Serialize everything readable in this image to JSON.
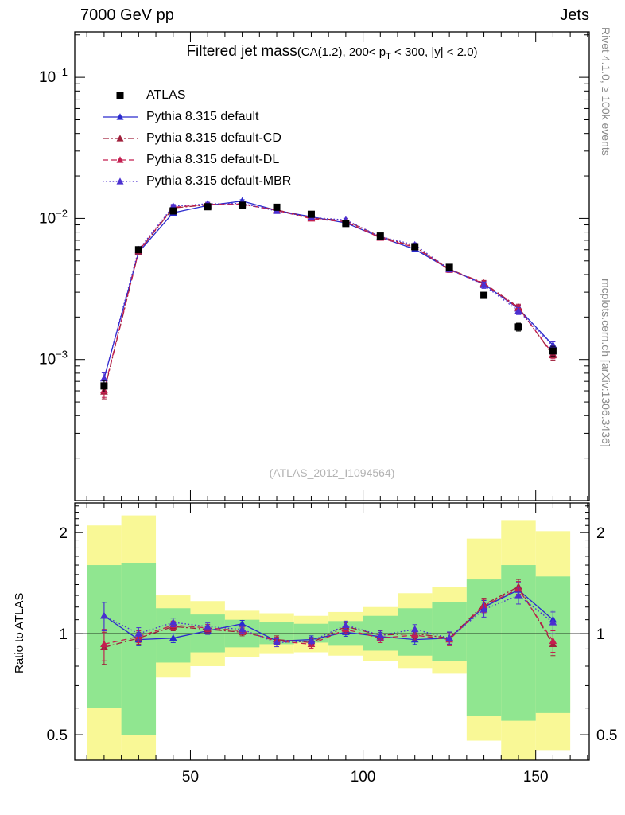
{
  "header": {
    "left": "7000 GeV pp",
    "right": "Jets"
  },
  "side": {
    "top": "Rivet 4.1.0, ≥ 100k events",
    "bottom": "mcplots.cern.ch [arXiv:1306.3436]"
  },
  "chart_data": {
    "type": "line",
    "title": "Filtered jet mass",
    "title_detail": {
      "pre": "(CA(1.2), 200< p",
      "sub": "T",
      "post": " < 300, |y| < 2.0)"
    },
    "watermark": "(ATLAS_2012_I1094564)",
    "xlim": [
      16.5,
      165.5
    ],
    "x": [
      25,
      35,
      45,
      55,
      65,
      75,
      85,
      95,
      105,
      115,
      125,
      135,
      145,
      155
    ],
    "bin_edges": [
      20,
      30,
      40,
      50,
      60,
      70,
      80,
      90,
      100,
      110,
      120,
      130,
      140,
      150,
      160
    ],
    "xticks": [
      {
        "v": 50,
        "label": "50"
      },
      {
        "v": 100,
        "label": "100"
      },
      {
        "v": 150,
        "label": "150"
      }
    ],
    "main": {
      "scale": "log",
      "ylim": [
        0.0001,
        0.21
      ],
      "ytick_base": "10",
      "yticks": [
        {
          "v": 0.001,
          "exp": "−3"
        },
        {
          "v": 0.01,
          "exp": "−2"
        },
        {
          "v": 0.1,
          "exp": "−1"
        }
      ],
      "atlas": {
        "name": "ATLAS",
        "color": "#000000",
        "marker": "square",
        "values": [
          0.00065,
          0.006,
          0.0113,
          0.0121,
          0.0124,
          0.012,
          0.0107,
          0.0092,
          0.0075,
          0.0063,
          0.0045,
          0.00285,
          0.0017,
          0.00115
        ],
        "yerr": [
          6e-05,
          0.00025,
          0.00035,
          0.00035,
          0.00035,
          0.00035,
          0.0003,
          0.00028,
          0.00025,
          0.00022,
          0.00018,
          0.00014,
          0.00011,
          9e-05
        ]
      }
    },
    "series": [
      {
        "name": "Pythia 8.315 default",
        "color": "#2a2ace",
        "line": "solid",
        "marker": "triangle",
        "ratio": [
          1.13,
          0.96,
          0.97,
          1.02,
          1.07,
          0.95,
          0.96,
          1.01,
          0.98,
          0.96,
          0.97,
          1.2,
          1.35,
          1.1
        ],
        "ratio_err": [
          0.11,
          0.04,
          0.03,
          0.025,
          0.025,
          0.025,
          0.025,
          0.028,
          0.03,
          0.032,
          0.04,
          0.055,
          0.07,
          0.075
        ]
      },
      {
        "name": "Pythia 8.315 default-CD",
        "color": "#a0203c",
        "line": "dashdot",
        "marker": "triangle",
        "ratio": [
          0.91,
          0.97,
          1.05,
          1.03,
          1.01,
          0.96,
          0.94,
          1.05,
          0.99,
          1.0,
          0.97,
          1.22,
          1.38,
          0.93
        ],
        "ratio_err": [
          0.1,
          0.04,
          0.03,
          0.025,
          0.025,
          0.025,
          0.025,
          0.028,
          0.03,
          0.032,
          0.04,
          0.055,
          0.07,
          0.07
        ]
      },
      {
        "name": "Pythia 8.315 default-DL",
        "color": "#c41e4f",
        "line": "dash",
        "marker": "triangle",
        "ratio": [
          0.93,
          0.98,
          1.06,
          1.04,
          1.02,
          0.95,
          0.93,
          1.03,
          0.97,
          0.99,
          0.96,
          1.21,
          1.36,
          0.95
        ],
        "ratio_err": [
          0.1,
          0.04,
          0.03,
          0.025,
          0.025,
          0.025,
          0.025,
          0.028,
          0.03,
          0.032,
          0.04,
          0.055,
          0.07,
          0.07
        ]
      },
      {
        "name": "Pythia 8.315 default-MBR",
        "color": "#4b2fd0",
        "line": "dot",
        "marker": "triangle",
        "ratio": [
          1.13,
          1.0,
          1.08,
          1.05,
          1.03,
          0.94,
          0.95,
          1.06,
          0.99,
          1.03,
          0.97,
          1.18,
          1.3,
          1.08
        ],
        "ratio_err": [
          0.11,
          0.042,
          0.032,
          0.026,
          0.026,
          0.026,
          0.026,
          0.03,
          0.032,
          0.034,
          0.042,
          0.06,
          0.075,
          0.08
        ]
      }
    ],
    "ratio": {
      "ylabel": "Ratio to ATLAS",
      "scale": "log",
      "ylim": [
        0.42,
        2.45
      ],
      "yticks": [
        {
          "v": 0.5,
          "label": "0.5"
        },
        {
          "v": 1,
          "label": "1"
        },
        {
          "v": 2,
          "label": "2"
        }
      ],
      "reference": 1,
      "bands": {
        "yellow": {
          "color": "#f9f896",
          "lo": [
            0.42,
            0.4,
            0.74,
            0.8,
            0.85,
            0.87,
            0.88,
            0.86,
            0.83,
            0.79,
            0.76,
            0.48,
            0.42,
            0.45
          ],
          "hi": [
            2.1,
            2.25,
            1.3,
            1.25,
            1.17,
            1.15,
            1.13,
            1.16,
            1.2,
            1.32,
            1.38,
            1.92,
            2.18,
            2.02
          ]
        },
        "green": {
          "color": "#90e690",
          "lo": [
            0.6,
            0.5,
            0.82,
            0.88,
            0.91,
            0.93,
            0.94,
            0.92,
            0.89,
            0.86,
            0.83,
            0.57,
            0.55,
            0.58
          ],
          "hi": [
            1.6,
            1.62,
            1.19,
            1.14,
            1.1,
            1.08,
            1.07,
            1.09,
            1.13,
            1.19,
            1.24,
            1.45,
            1.6,
            1.48
          ]
        }
      }
    }
  }
}
